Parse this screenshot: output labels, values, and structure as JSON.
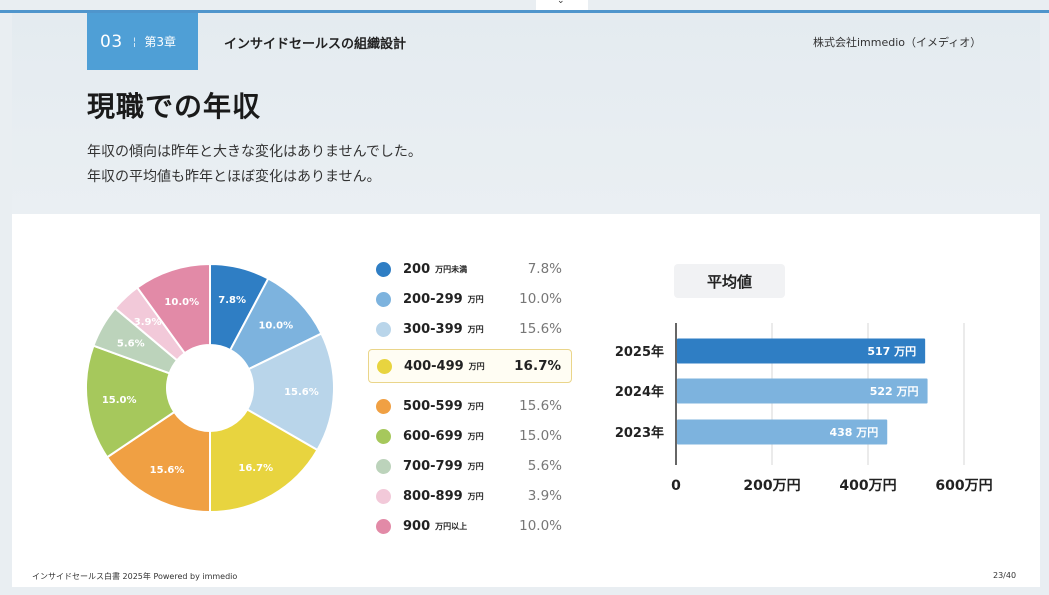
{
  "header": {
    "chapter_num": "03",
    "chapter_label": "第3章",
    "section_title": "インサイドセールスの組織設計",
    "company": "株式会社immedio（イメディオ）"
  },
  "page_title": "現職での年収",
  "description": [
    "年収の傾向は昨年と大きな変化はありませんでした。",
    "年収の平均値も昨年とほぼ変化はありません。"
  ],
  "chart_data": [
    {
      "type": "pie",
      "donut": true,
      "highlighted_index": 3,
      "slices": [
        {
          "range": "200",
          "unit": "万円未満",
          "value": 7.8,
          "pie_label": "7.8%",
          "legend_label": "7.8%",
          "color": "#2f7ec4"
        },
        {
          "range": "200-299",
          "unit": "万円",
          "value": 10.0,
          "pie_label": "10.0%",
          "legend_label": "10.0%",
          "color": "#7db3de"
        },
        {
          "range": "300-399",
          "unit": "万円",
          "value": 15.6,
          "pie_label": "15.6%",
          "legend_label": "15.6%",
          "color": "#b9d5ea"
        },
        {
          "range": "400-499",
          "unit": "万円",
          "value": 16.7,
          "pie_label": "16.7%",
          "legend_label": "16.7%",
          "color": "#e8d43f"
        },
        {
          "range": "500-599",
          "unit": "万円",
          "value": 15.6,
          "pie_label": "15.6%",
          "legend_label": "15.6%",
          "color": "#f0a043"
        },
        {
          "range": "600-699",
          "unit": "万円",
          "value": 15.0,
          "pie_label": "15.0%",
          "legend_label": "15.0%",
          "color": "#a6c85c"
        },
        {
          "range": "700-799",
          "unit": "万円",
          "value": 5.6,
          "pie_label": "5.6%",
          "legend_label": "5.6%",
          "color": "#bcd3bb"
        },
        {
          "range": "800-899",
          "unit": "万円",
          "value": 3.9,
          "pie_label": "3.9%",
          "legend_label": "3.9%",
          "color": "#f2c9d9"
        },
        {
          "range": "900",
          "unit": "万円以上",
          "value": 10.0,
          "pie_label": "10.0%",
          "legend_label": "10.0%",
          "color": "#e28aa7"
        }
      ]
    },
    {
      "type": "bar",
      "orientation": "horizontal",
      "title": "平均値",
      "categories": [
        "2025年",
        "2024年",
        "2023年"
      ],
      "values": [
        517,
        522,
        438
      ],
      "value_labels": [
        "517 万円",
        "522 万円",
        "438 万円"
      ],
      "colors": [
        "#2f7ec4",
        "#7db3de",
        "#7db3de"
      ],
      "xlim": [
        0,
        600
      ],
      "xticks": [
        0,
        200,
        400,
        600
      ],
      "xtick_labels": [
        "0",
        "200万円",
        "400万円",
        "600万円"
      ],
      "grid": true
    }
  ],
  "footer": {
    "left": "インサイドセールス白書 2025年 Powered by immedio",
    "right": "23/40"
  }
}
